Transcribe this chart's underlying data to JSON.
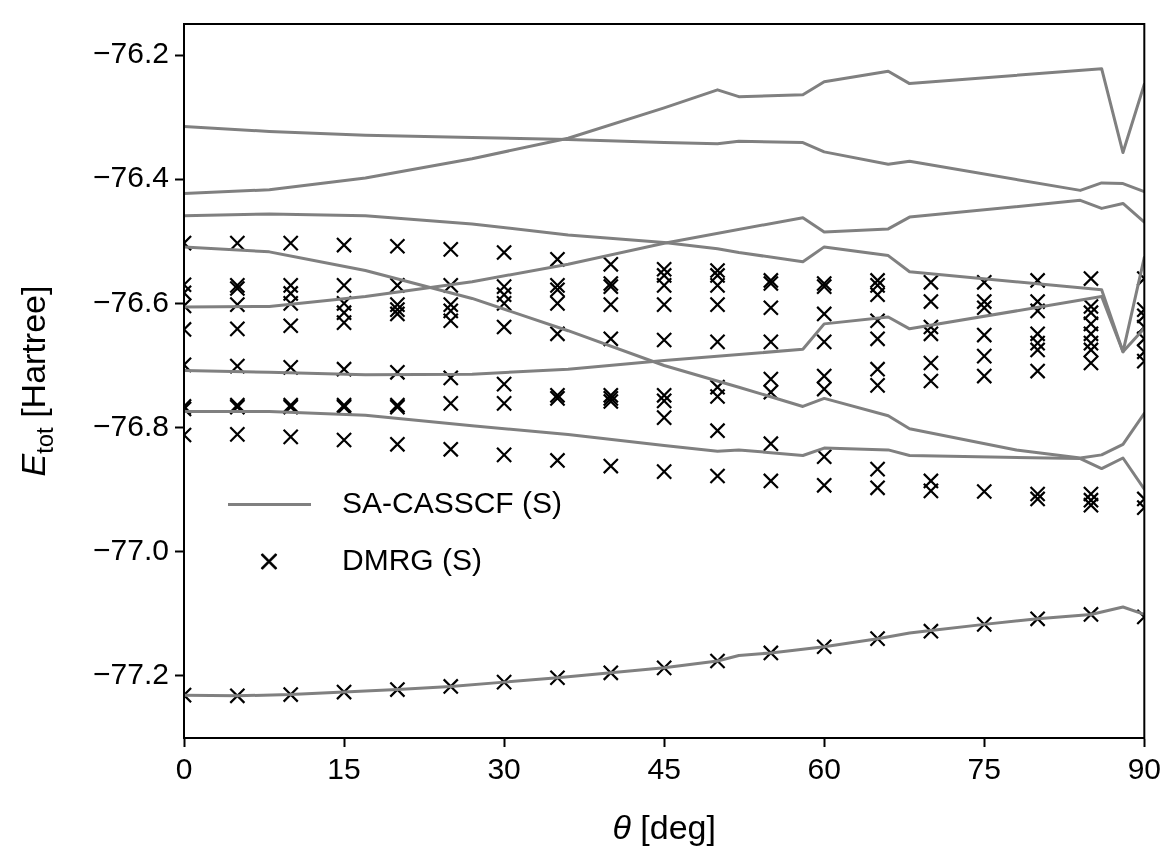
{
  "chart_data": {
    "type": "line",
    "xlabel": "θ [deg]",
    "ylabel": "E$_{tot}$ [Hartree]",
    "xlim": [
      0,
      90
    ],
    "xticks": [
      0,
      15,
      30,
      45,
      60,
      75,
      90
    ],
    "ylim": [
      -77.3,
      -76.15
    ],
    "yticks": [
      {
        "value": -77.2,
        "label": "−77.2"
      },
      {
        "value": -77.0,
        "label": "−77.0"
      },
      {
        "value": -76.8,
        "label": "−76.8"
      },
      {
        "value": -76.6,
        "label": "−76.6"
      },
      {
        "value": -76.4,
        "label": "−76.4"
      },
      {
        "value": -76.2,
        "label": "−76.2"
      }
    ],
    "grid": false,
    "legend": "bottom left",
    "line_style": "solid",
    "series": [
      {
        "name": "SA-CASSCF (S)",
        "color": "#808080",
        "marker": "none",
        "x": [
          0,
          8,
          17,
          27,
          36,
          45,
          50,
          52,
          58,
          60,
          66,
          68,
          84,
          86,
          88,
          90
        ],
        "values": [
          -76.315,
          -76.323,
          -76.329,
          -76.333,
          -76.336,
          -76.341,
          -76.343,
          -76.339,
          -76.341,
          -76.356,
          -76.376,
          -76.371,
          -76.418,
          -76.406,
          -76.407,
          -76.42
        ]
      },
      {
        "color": "#808080",
        "marker": "none",
        "x": [
          0,
          8,
          17,
          27,
          36,
          45,
          50,
          52,
          58,
          60,
          66,
          68,
          86,
          88,
          90
        ],
        "values": [
          -76.423,
          -76.417,
          -76.398,
          -76.367,
          -76.334,
          -76.285,
          -76.256,
          -76.267,
          -76.264,
          -76.243,
          -76.226,
          -76.246,
          -76.222,
          -76.357,
          -76.247
        ]
      },
      {
        "color": "#808080",
        "marker": "none",
        "x": [
          0,
          8,
          17,
          27,
          36,
          45,
          50,
          52,
          58,
          60,
          66,
          68,
          86,
          88,
          90
        ],
        "values": [
          -76.459,
          -76.456,
          -76.459,
          -76.472,
          -76.49,
          -76.502,
          -76.512,
          -76.518,
          -76.533,
          -76.509,
          -76.523,
          -76.549,
          -76.578,
          -76.678,
          -76.526
        ]
      },
      {
        "color": "#808080",
        "marker": "none",
        "x": [
          0,
          8,
          17,
          27,
          36,
          45,
          52,
          58,
          60,
          66,
          68,
          78,
          84,
          86,
          88,
          90
        ],
        "values": [
          -76.509,
          -76.517,
          -76.547,
          -76.592,
          -76.644,
          -76.7,
          -76.735,
          -76.766,
          -76.753,
          -76.781,
          -76.802,
          -76.836,
          -76.849,
          -76.844,
          -76.827,
          -76.777
        ]
      },
      {
        "color": "#808080",
        "marker": "none",
        "x": [
          0,
          8,
          17,
          27,
          36,
          45,
          58,
          60,
          66,
          68,
          84,
          86,
          88,
          90
        ],
        "values": [
          -76.606,
          -76.605,
          -76.589,
          -76.565,
          -76.537,
          -76.503,
          -76.462,
          -76.485,
          -76.48,
          -76.461,
          -76.434,
          -76.447,
          -76.439,
          -76.469
        ]
      },
      {
        "color": "#808080",
        "marker": "none",
        "x": [
          0,
          8,
          17,
          27,
          36,
          45,
          58,
          60,
          66,
          68,
          86,
          88,
          90
        ],
        "values": [
          -76.708,
          -76.711,
          -76.715,
          -76.714,
          -76.706,
          -76.692,
          -76.674,
          -76.633,
          -76.622,
          -76.641,
          -76.589,
          -76.678,
          -76.64
        ]
      },
      {
        "color": "#808080",
        "marker": "none",
        "x": [
          0,
          8,
          17,
          27,
          36,
          45,
          50,
          52,
          58,
          60,
          66,
          68,
          84,
          86,
          88,
          90
        ],
        "values": [
          -76.774,
          -76.774,
          -76.78,
          -76.797,
          -76.811,
          -76.829,
          -76.838,
          -76.836,
          -76.845,
          -76.833,
          -76.836,
          -76.845,
          -76.85,
          -76.866,
          -76.849,
          -76.899
        ]
      },
      {
        "color": "#808080",
        "marker": "none",
        "x": [
          0,
          5,
          10,
          15,
          20,
          25,
          30,
          35,
          40,
          45,
          50,
          52,
          55,
          60,
          65,
          68,
          70,
          75,
          80,
          85,
          88,
          90
        ],
        "values": [
          -77.231,
          -77.232,
          -77.23,
          -77.226,
          -77.222,
          -77.217,
          -77.21,
          -77.203,
          -77.195,
          -77.187,
          -77.176,
          -77.167,
          -77.163,
          -77.153,
          -77.14,
          -77.131,
          -77.127,
          -77.117,
          -77.108,
          -77.101,
          -77.089,
          -77.101
        ]
      },
      {
        "name": "DMRG (S)",
        "type": "scatter",
        "color": "#000000",
        "marker": "cross",
        "x": [
          0,
          0,
          0,
          0,
          0,
          0,
          0,
          0,
          0,
          0,
          5,
          5,
          5,
          5,
          5,
          5,
          5,
          5,
          5,
          5,
          10,
          10,
          10,
          10,
          10,
          10,
          10,
          10,
          10,
          10,
          15,
          15,
          15,
          15,
          15,
          15,
          15,
          15,
          15,
          15,
          20,
          20,
          20,
          20,
          20,
          20,
          20,
          20,
          20,
          20,
          25,
          25,
          25,
          25,
          25,
          25,
          25,
          25,
          25,
          30,
          30,
          30,
          30,
          30,
          30,
          30,
          30,
          30,
          35,
          35,
          35,
          35,
          35,
          35,
          35,
          35,
          35,
          40,
          40,
          40,
          40,
          40,
          40,
          40,
          40,
          40,
          40,
          45,
          45,
          45,
          45,
          45,
          45,
          45,
          45,
          45,
          45,
          50,
          50,
          50,
          50,
          50,
          50,
          50,
          50,
          50,
          50,
          55,
          55,
          55,
          55,
          55,
          55,
          55,
          55,
          55,
          60,
          60,
          60,
          60,
          60,
          60,
          60,
          60,
          60,
          65,
          65,
          65,
          65,
          65,
          65,
          65,
          65,
          65,
          65,
          70,
          70,
          70,
          70,
          70,
          70,
          70,
          70,
          70,
          75,
          75,
          75,
          75,
          75,
          75,
          75,
          75,
          80,
          80,
          80,
          80,
          80,
          80,
          80,
          80,
          80,
          80,
          85,
          85,
          85,
          85,
          85,
          85,
          85,
          85,
          85,
          85,
          85,
          85,
          90,
          90,
          90,
          90,
          90,
          90,
          90,
          90,
          90,
          90
        ],
        "values": [
          -76.503,
          -76.57,
          -76.583,
          -76.604,
          -76.642,
          -76.699,
          -76.766,
          -76.77,
          -76.812,
          -77.231,
          -76.503,
          -76.571,
          -76.576,
          -76.602,
          -76.641,
          -76.701,
          -76.764,
          -76.767,
          -76.811,
          -77.232,
          -76.503,
          -76.571,
          -76.584,
          -76.6,
          -76.636,
          -76.703,
          -76.764,
          -76.767,
          -76.815,
          -77.23,
          -76.506,
          -76.571,
          -76.6,
          -76.615,
          -76.631,
          -76.706,
          -76.764,
          -76.767,
          -76.82,
          -77.226,
          -76.508,
          -76.571,
          -76.602,
          -76.61,
          -76.617,
          -76.711,
          -76.764,
          -76.767,
          -76.827,
          -77.222,
          -76.513,
          -76.571,
          -76.602,
          -76.612,
          -76.628,
          -76.72,
          -76.761,
          -76.835,
          -77.217,
          -76.518,
          -76.573,
          -76.586,
          -76.6,
          -76.638,
          -76.73,
          -76.761,
          -76.844,
          -77.21,
          -76.529,
          -76.571,
          -76.578,
          -76.6,
          -76.649,
          -76.748,
          -76.753,
          -76.853,
          -77.203,
          -76.537,
          -76.568,
          -76.573,
          -76.602,
          -76.657,
          -76.748,
          -76.753,
          -76.758,
          -76.862,
          -77.195,
          -76.545,
          -76.555,
          -76.571,
          -76.602,
          -76.659,
          -76.748,
          -76.757,
          -76.784,
          -76.871,
          -77.187,
          -76.547,
          -76.555,
          -76.571,
          -76.602,
          -76.662,
          -76.735,
          -76.75,
          -76.805,
          -76.878,
          -77.176,
          -76.563,
          -76.568,
          -76.607,
          -76.662,
          -76.722,
          -76.743,
          -76.826,
          -76.886,
          -77.163,
          -76.568,
          -76.573,
          -76.617,
          -76.662,
          -76.717,
          -76.738,
          -76.847,
          -76.893,
          -77.153,
          -76.563,
          -76.571,
          -76.586,
          -76.628,
          -76.657,
          -76.706,
          -76.732,
          -76.867,
          -76.897,
          -77.14,
          -76.566,
          -76.597,
          -76.638,
          -76.649,
          -76.696,
          -76.725,
          -76.886,
          -76.902,
          -77.128,
          -76.566,
          -76.597,
          -76.607,
          -76.651,
          -76.685,
          -76.717,
          -76.903,
          -77.117,
          -76.563,
          -76.597,
          -76.612,
          -76.649,
          -76.664,
          -76.675,
          -76.709,
          -76.907,
          -76.915,
          -77.108,
          -76.56,
          -76.605,
          -76.615,
          -76.633,
          -76.649,
          -76.664,
          -76.675,
          -76.696,
          -76.907,
          -76.917,
          -76.925,
          -77.101,
          -76.56,
          -76.61,
          -76.62,
          -76.638,
          -76.657,
          -76.678,
          -76.693,
          -76.915,
          -76.929,
          -77.105
        ]
      }
    ]
  }
}
